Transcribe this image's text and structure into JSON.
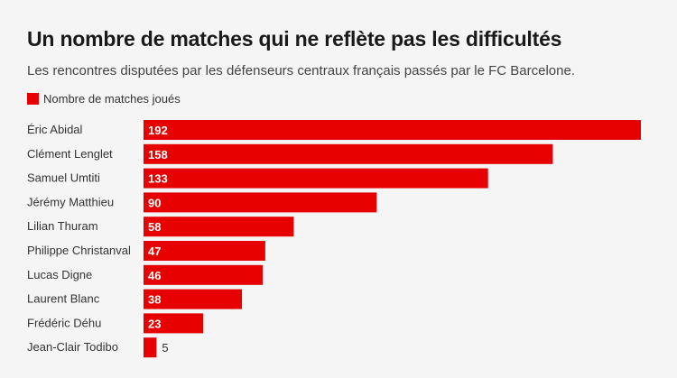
{
  "header": {
    "title": "Un nombre de matches qui ne reflète pas les difficultés",
    "subtitle": "Les rencontres disputées par les défenseurs centraux français passés par le FC Barcelone."
  },
  "colors": {
    "bar": "#e60000",
    "background": "#f5f5f5"
  },
  "chart_data": {
    "type": "bar",
    "orientation": "horizontal",
    "title": "Un nombre de matches qui ne reflète pas les difficultés",
    "subtitle": "Les rencontres disputées par les défenseurs centraux français passés par le FC Barcelone.",
    "categories": [
      "Éric Abidal",
      "Clément Lenglet",
      "Samuel Umtiti",
      "Jérémy Matthieu",
      "Lilian Thuram",
      "Philippe Christanval",
      "Lucas Digne",
      "Laurent Blanc",
      "Frédéric Déhu",
      "Jean-Clair Todibo"
    ],
    "series": [
      {
        "name": "Nombre de matches joués",
        "values": [
          192,
          158,
          133,
          90,
          58,
          47,
          46,
          38,
          23,
          5
        ]
      }
    ],
    "xlim": [
      0,
      192
    ],
    "legend": "top-left",
    "grid": false,
    "data_labels": true
  }
}
